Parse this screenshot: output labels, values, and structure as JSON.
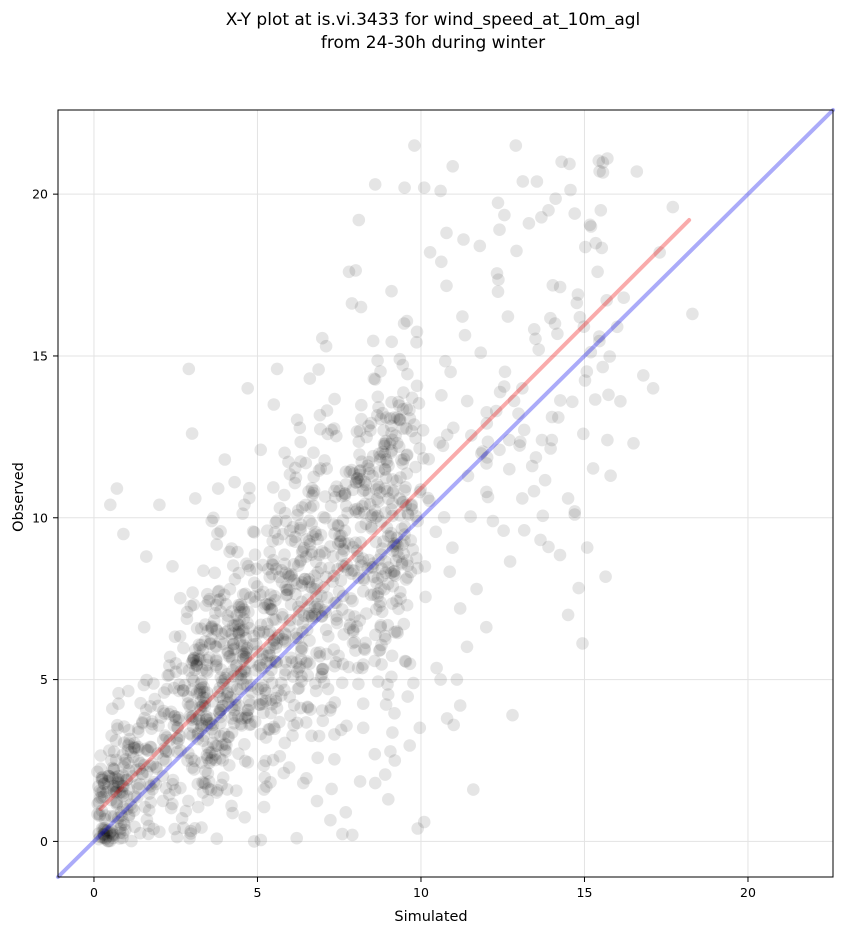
{
  "chart_data": {
    "type": "scatter",
    "title_lines": [
      "X-Y plot at is.vi.3433 for wind_speed_at_10m_agl",
      "from 24-30h during winter"
    ],
    "xlabel": "Simulated",
    "ylabel": "Observed",
    "xlim": [
      -1.1,
      22.6
    ],
    "ylim": [
      -1.1,
      22.6
    ],
    "x_ticks": [
      0,
      5,
      10,
      15,
      20
    ],
    "y_ticks": [
      0,
      5,
      10,
      15,
      20
    ],
    "grid": true,
    "marker_color": "#000000",
    "marker_alpha": 0.1,
    "reference_lines": [
      {
        "kind": "identity",
        "color": "#0000ee",
        "x": [
          -1.1,
          22.6
        ],
        "y": [
          -1.1,
          22.6
        ]
      },
      {
        "kind": "fit",
        "color": "#ee0000",
        "x": [
          0.2,
          18.2
        ],
        "y": [
          1.0,
          19.2
        ]
      }
    ],
    "points_outliers": [
      [
        0.7,
        10.9
      ],
      [
        0.5,
        10.4
      ],
      [
        2.0,
        10.4
      ],
      [
        0.9,
        9.5
      ],
      [
        2.9,
        14.6
      ],
      [
        3.0,
        12.6
      ],
      [
        3.8,
        10.9
      ],
      [
        4.7,
        14.0
      ],
      [
        5.1,
        12.1
      ],
      [
        5.5,
        13.5
      ],
      [
        5.6,
        14.6
      ],
      [
        6.6,
        14.3
      ],
      [
        7.1,
        15.3
      ],
      [
        7.8,
        17.6
      ],
      [
        8.1,
        19.2
      ],
      [
        8.6,
        20.3
      ],
      [
        9.1,
        17.0
      ],
      [
        9.5,
        20.2
      ],
      [
        9.8,
        21.5
      ],
      [
        10.1,
        20.2
      ],
      [
        10.6,
        20.1
      ],
      [
        11.3,
        18.6
      ],
      [
        11.8,
        18.4
      ],
      [
        12.4,
        18.9
      ],
      [
        12.9,
        21.5
      ],
      [
        13.3,
        19.1
      ],
      [
        13.9,
        19.5
      ],
      [
        14.3,
        21.0
      ],
      [
        14.7,
        19.4
      ],
      [
        15.7,
        21.1
      ],
      [
        16.6,
        20.7
      ],
      [
        17.7,
        19.6
      ],
      [
        18.3,
        16.3
      ],
      [
        17.3,
        18.2
      ],
      [
        15.7,
        12.4
      ],
      [
        16.5,
        12.3
      ],
      [
        16.1,
        13.6
      ],
      [
        16.8,
        14.4
      ],
      [
        15.8,
        11.3
      ],
      [
        14.5,
        7.0
      ],
      [
        14.7,
        10.1
      ],
      [
        14.5,
        10.6
      ],
      [
        13.9,
        9.1
      ],
      [
        12.8,
        3.9
      ],
      [
        11.6,
        1.6
      ],
      [
        11.2,
        4.2
      ],
      [
        11.0,
        3.6
      ],
      [
        10.8,
        3.8
      ],
      [
        9.9,
        0.4
      ],
      [
        10.1,
        0.6
      ],
      [
        7.9,
        0.2
      ],
      [
        6.2,
        0.1
      ],
      [
        4.9,
        0.0
      ],
      [
        13.1,
        10.6
      ],
      [
        12.7,
        11.5
      ],
      [
        12.2,
        9.9
      ],
      [
        11.7,
        7.8
      ],
      [
        11.2,
        7.2
      ],
      [
        10.6,
        5.0
      ],
      [
        11.1,
        5.0
      ],
      [
        9.2,
        2.5
      ],
      [
        9.0,
        1.3
      ],
      [
        8.6,
        1.8
      ],
      [
        7.7,
        0.9
      ],
      [
        6.4,
        1.8
      ],
      [
        5.2,
        1.6
      ],
      [
        12.3,
        13.3
      ],
      [
        13.1,
        14.0
      ],
      [
        13.6,
        15.2
      ],
      [
        14.1,
        16.0
      ],
      [
        14.8,
        16.9
      ],
      [
        15.4,
        17.6
      ],
      [
        15.2,
        19.0
      ],
      [
        15.5,
        19.5
      ],
      [
        16.0,
        15.9
      ],
      [
        16.2,
        16.8
      ],
      [
        17.1,
        14.0
      ],
      [
        14.2,
        13.1
      ],
      [
        13.7,
        12.4
      ],
      [
        12.7,
        12.4
      ],
      [
        12.4,
        12.1
      ],
      [
        14.0,
        12.4
      ],
      [
        13.4,
        11.6
      ],
      [
        12.0,
        10.8
      ],
      [
        3.1,
        10.6
      ],
      [
        4.0,
        11.8
      ],
      [
        2.4,
        8.5
      ],
      [
        1.6,
        8.8
      ],
      [
        4.3,
        11.1
      ],
      [
        5.3,
        9.6
      ],
      [
        3.6,
        9.9
      ],
      [
        4.6,
        10.4
      ]
    ],
    "cluster_generator": {
      "count": 1400,
      "x_range": [
        0.1,
        15.8
      ],
      "fit_line": {
        "slope": 1.02,
        "intercept": 0.8
      },
      "x_clip": [
        0,
        18.4
      ],
      "y_clip": [
        0,
        21.2
      ]
    }
  }
}
